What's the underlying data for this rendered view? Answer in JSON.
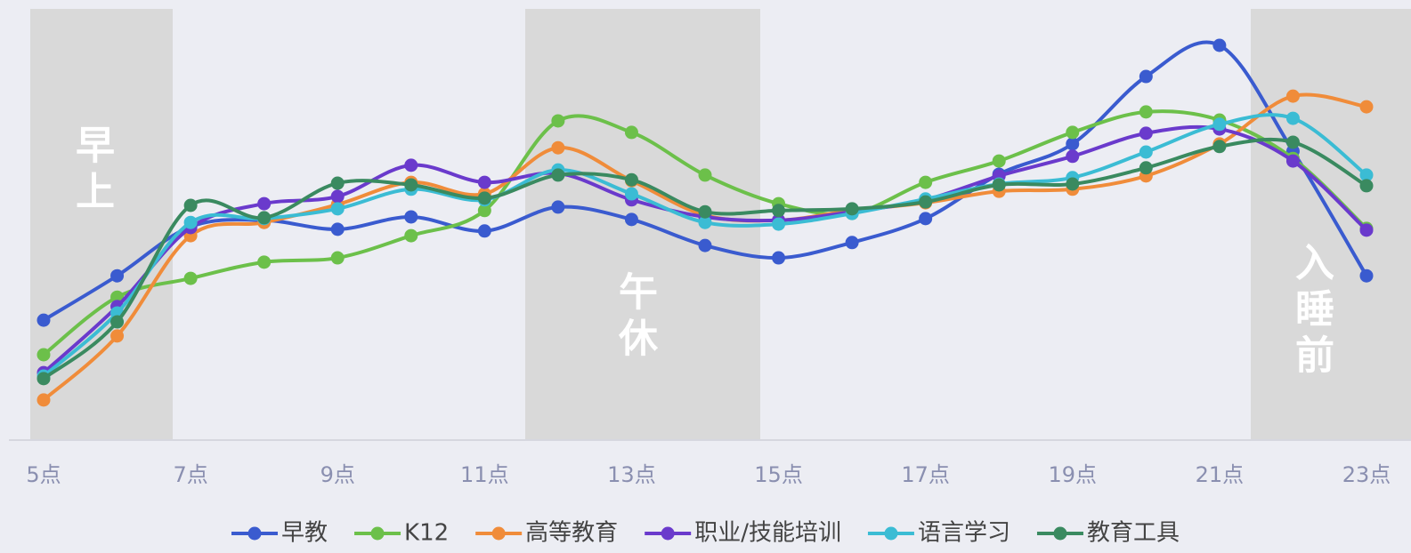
{
  "chart_data": {
    "type": "line",
    "categories": [
      "5点",
      null,
      "7点",
      null,
      "9点",
      null,
      "11点",
      null,
      "13点",
      null,
      "15点",
      null,
      "17点",
      null,
      "19点",
      null,
      "21点",
      null,
      "23点"
    ],
    "ylim": [
      0,
      100
    ],
    "smooth": true,
    "annotations": [
      "早上",
      "午休",
      "入睡前"
    ],
    "series": [
      {
        "name": "早教",
        "color": "#3a5bcf",
        "values": [
          28.1,
          38.5,
          50,
          51.5,
          49.4,
          52.3,
          49,
          54.6,
          51.7,
          45.6,
          42.7,
          46.3,
          51.9,
          62.3,
          69.4,
          85.2,
          92.5,
          67.7,
          38.5
        ]
      },
      {
        "name": "K12",
        "color": "#6cc04a",
        "values": [
          20,
          33.5,
          37.9,
          41.7,
          42.7,
          47.9,
          53.8,
          74.8,
          72.1,
          62.1,
          55.4,
          53.1,
          60.4,
          65.4,
          72.1,
          76.9,
          75,
          66,
          49.6
        ]
      },
      {
        "name": "高等教育",
        "color": "#f08c3a",
        "values": [
          9.4,
          24.4,
          47.9,
          51,
          55.2,
          60.4,
          57.7,
          68.5,
          60.8,
          52.7,
          51.5,
          53.8,
          55.6,
          58.3,
          58.8,
          61.9,
          69.4,
          80.6,
          78.1
        ]
      },
      {
        "name": "职业/技能培训",
        "color": "#6a3acc",
        "values": [
          15.8,
          31.3,
          49.8,
          55.4,
          57.1,
          64.4,
          60.4,
          62.5,
          56.3,
          52.3,
          51.5,
          53.5,
          56.3,
          61.9,
          66.5,
          71.9,
          72.9,
          65.4,
          49.2
        ]
      },
      {
        "name": "语言学习",
        "color": "#3bbcd4",
        "values": [
          15,
          29.8,
          51,
          51.9,
          54.2,
          58.8,
          56.3,
          63.3,
          57.7,
          51,
          50.6,
          53.1,
          56.5,
          60,
          61.5,
          67.5,
          74,
          75.4,
          62.1
        ]
      },
      {
        "name": "教育工具",
        "color": "#3a8a60",
        "values": [
          14.4,
          27.7,
          55,
          52.1,
          60.2,
          59.8,
          56.7,
          62.1,
          61,
          53.5,
          53.8,
          54.2,
          55.8,
          59.8,
          60,
          63.8,
          68.8,
          69.8,
          59.6
        ]
      }
    ]
  }
}
